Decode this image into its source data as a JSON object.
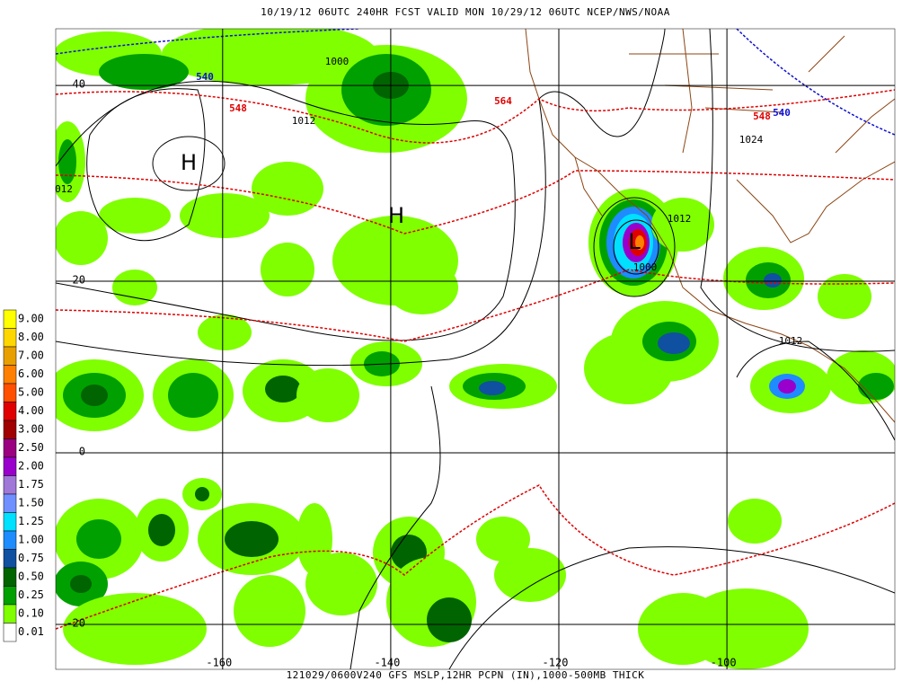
{
  "header": {
    "title": "10/19/12 06UTC  240HR  FCST VALID MON 10/29/12 06UTC  NCEP/NWS/NOAA"
  },
  "footer": {
    "caption": "121029/0600V240 GFS MSLP,12HR PCPN (IN),1000-500MB THICK"
  },
  "legend": {
    "items": [
      {
        "label": "9.00",
        "color": "#ffff00"
      },
      {
        "label": "8.00",
        "color": "#ffd700"
      },
      {
        "label": "7.00",
        "color": "#e8a000"
      },
      {
        "label": "6.00",
        "color": "#ff8000"
      },
      {
        "label": "5.00",
        "color": "#ff5000"
      },
      {
        "label": "4.00",
        "color": "#e00000"
      },
      {
        "label": "3.00",
        "color": "#a00000"
      },
      {
        "label": "2.50",
        "color": "#9a0080"
      },
      {
        "label": "2.00",
        "color": "#9900cc"
      },
      {
        "label": "1.75",
        "color": "#a078d8"
      },
      {
        "label": "1.50",
        "color": "#7090ff"
      },
      {
        "label": "1.25",
        "color": "#00e0ff"
      },
      {
        "label": "1.00",
        "color": "#1e8cff"
      },
      {
        "label": "0.75",
        "color": "#1050a0"
      },
      {
        "label": "0.50",
        "color": "#006400"
      },
      {
        "label": "0.25",
        "color": "#00a000"
      },
      {
        "label": "0.10",
        "color": "#7fff00"
      },
      {
        "label": "0.01",
        "color": "#ffffff"
      }
    ]
  },
  "grid": {
    "lat": [
      40,
      20,
      0,
      -20
    ],
    "lon": [
      -160,
      -140,
      -120,
      -100
    ]
  },
  "contour_labels": [
    "540",
    "548",
    "1000",
    "1012",
    "H",
    "H",
    "564",
    "1012",
    "L",
    "1000",
    "548",
    "540",
    "1024",
    "1012",
    "012"
  ]
}
